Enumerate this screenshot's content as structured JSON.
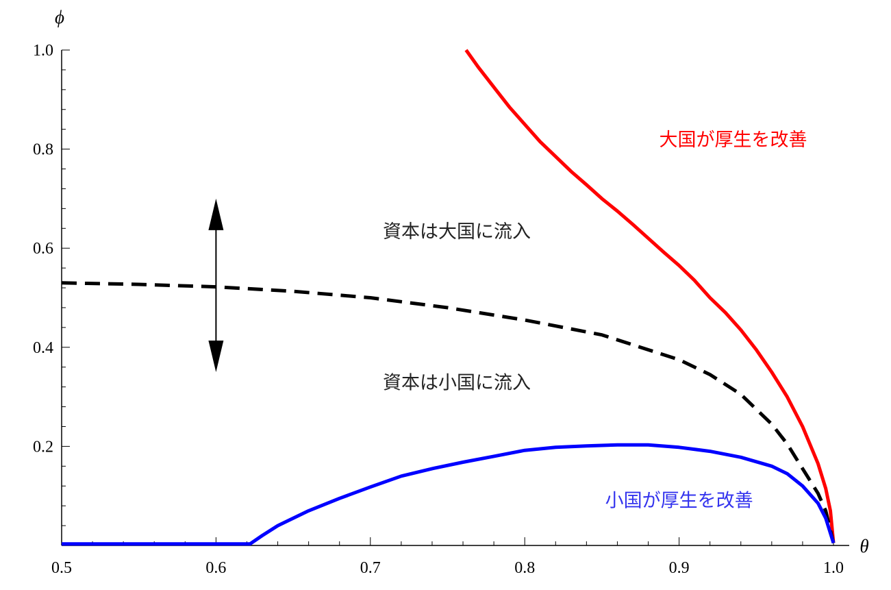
{
  "chart_data": {
    "type": "line",
    "title": "",
    "xlabel": "θ",
    "ylabel": "ϕ",
    "xlim": [
      0.5,
      1.0
    ],
    "ylim": [
      0.0,
      1.0
    ],
    "x_ticks": [
      0.5,
      0.6,
      0.7,
      0.8,
      0.9,
      1.0
    ],
    "x_tick_labels": [
      "0.5",
      "0.6",
      "0.7",
      "0.8",
      "0.9",
      "1.0"
    ],
    "y_ticks": [
      0.2,
      0.4,
      0.6,
      0.8,
      1.0
    ],
    "y_tick_labels": [
      "0.2",
      "0.4",
      "0.6",
      "0.8",
      "1.0"
    ],
    "grid": false,
    "series": [
      {
        "color": "#ff0000",
        "style": "solid",
        "points": [
          [
            0.762,
            1.0
          ],
          [
            0.77,
            0.965
          ],
          [
            0.78,
            0.925
          ],
          [
            0.79,
            0.885
          ],
          [
            0.8,
            0.85
          ],
          [
            0.81,
            0.815
          ],
          [
            0.82,
            0.785
          ],
          [
            0.83,
            0.755
          ],
          [
            0.84,
            0.728
          ],
          [
            0.85,
            0.7
          ],
          [
            0.86,
            0.675
          ],
          [
            0.87,
            0.648
          ],
          [
            0.88,
            0.62
          ],
          [
            0.89,
            0.592
          ],
          [
            0.9,
            0.565
          ],
          [
            0.91,
            0.535
          ],
          [
            0.92,
            0.5
          ],
          [
            0.93,
            0.47
          ],
          [
            0.94,
            0.435
          ],
          [
            0.95,
            0.395
          ],
          [
            0.96,
            0.35
          ],
          [
            0.97,
            0.3
          ],
          [
            0.98,
            0.24
          ],
          [
            0.99,
            0.165
          ],
          [
            0.995,
            0.115
          ],
          [
            0.998,
            0.07
          ],
          [
            1.0,
            0.005
          ]
        ]
      },
      {
        "color": "#000000",
        "style": "dashed",
        "points": [
          [
            0.5,
            0.53
          ],
          [
            0.55,
            0.527
          ],
          [
            0.6,
            0.522
          ],
          [
            0.65,
            0.513
          ],
          [
            0.7,
            0.5
          ],
          [
            0.75,
            0.48
          ],
          [
            0.8,
            0.455
          ],
          [
            0.85,
            0.425
          ],
          [
            0.9,
            0.375
          ],
          [
            0.92,
            0.345
          ],
          [
            0.94,
            0.305
          ],
          [
            0.96,
            0.245
          ],
          [
            0.97,
            0.205
          ],
          [
            0.98,
            0.155
          ],
          [
            0.99,
            0.105
          ],
          [
            0.995,
            0.07
          ],
          [
            1.0,
            0.005
          ]
        ]
      },
      {
        "color": "#0000ff",
        "style": "solid",
        "points": [
          [
            0.5,
            0.003
          ],
          [
            0.6,
            0.003
          ],
          [
            0.622,
            0.003
          ],
          [
            0.63,
            0.02
          ],
          [
            0.64,
            0.04
          ],
          [
            0.66,
            0.07
          ],
          [
            0.68,
            0.095
          ],
          [
            0.7,
            0.118
          ],
          [
            0.72,
            0.14
          ],
          [
            0.74,
            0.155
          ],
          [
            0.76,
            0.168
          ],
          [
            0.78,
            0.18
          ],
          [
            0.8,
            0.192
          ],
          [
            0.82,
            0.198
          ],
          [
            0.84,
            0.201
          ],
          [
            0.86,
            0.203
          ],
          [
            0.88,
            0.203
          ],
          [
            0.9,
            0.198
          ],
          [
            0.92,
            0.19
          ],
          [
            0.94,
            0.178
          ],
          [
            0.96,
            0.16
          ],
          [
            0.97,
            0.145
          ],
          [
            0.98,
            0.12
          ],
          [
            0.99,
            0.085
          ],
          [
            0.995,
            0.055
          ],
          [
            1.0,
            0.005
          ]
        ]
      }
    ],
    "annotations": [
      {
        "text": "大国が厚生を改善",
        "x": 0.935,
        "y": 0.82,
        "color": "#ff0000"
      },
      {
        "text": "資本は大国に流入",
        "x": 0.756,
        "y": 0.635,
        "color": "#222222"
      },
      {
        "text": "資本は小国に流入",
        "x": 0.756,
        "y": 0.33,
        "color": "#222222"
      },
      {
        "text": "小国が厚生を改善",
        "x": 0.9,
        "y": 0.092,
        "color": "#3333ee"
      }
    ],
    "arrow": {
      "x": 0.6,
      "y_from": 0.35,
      "y_to": 0.7,
      "direction": "both"
    }
  }
}
